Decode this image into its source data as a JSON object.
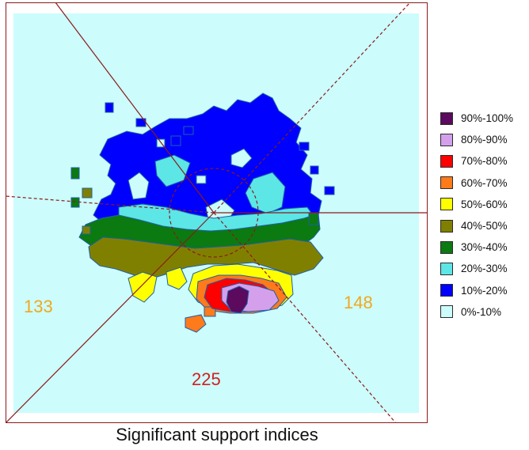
{
  "caption": "Significant support indices",
  "sector_labels": {
    "left": "133",
    "right": "148",
    "bottom": "225"
  },
  "colors": {
    "frame": "#8B1A1A",
    "left_label": "#F2A81D",
    "right_label": "#F2A81D",
    "bottom_label": "#D21F1F"
  },
  "legend": [
    {
      "label": "90%-100%",
      "color": "#5B0A5E"
    },
    {
      "label": "80%-90%",
      "color": "#D4A0EC"
    },
    {
      "label": "70%-80%",
      "color": "#FF0000"
    },
    {
      "label": "60%-70%",
      "color": "#FF7A1A"
    },
    {
      "label": "50%-60%",
      "color": "#FFFF00"
    },
    {
      "label": "40%-50%",
      "color": "#808000"
    },
    {
      "label": "30%-40%",
      "color": "#0B7A10"
    },
    {
      "label": "20%-30%",
      "color": "#5CE6E6"
    },
    {
      "label": "10%-20%",
      "color": "#0000FF"
    },
    {
      "label": "0%-10%",
      "color": "#CCFCFC"
    }
  ]
}
